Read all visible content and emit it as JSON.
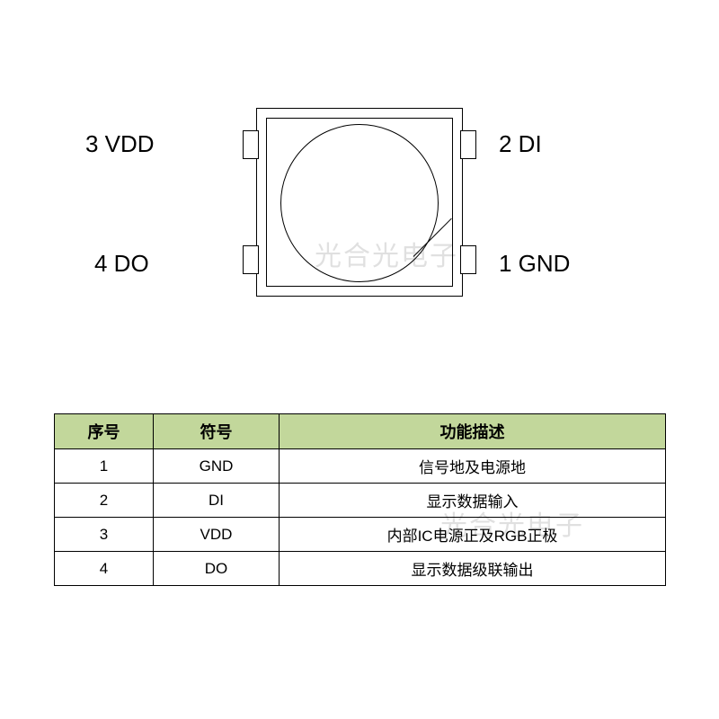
{
  "watermark": "光合光电子",
  "diagram": {
    "pins": {
      "p3": "3 VDD",
      "p2": "2 DI",
      "p4": "4 DO",
      "p1": "1 GND"
    },
    "stroke_color": "#000000",
    "background": "#ffffff"
  },
  "table": {
    "header_bg": "#c2d79b",
    "border_color": "#000000",
    "columns": [
      "序号",
      "符号",
      "功能描述"
    ],
    "rows": [
      [
        "1",
        "GND",
        "信号地及电源地"
      ],
      [
        "2",
        "DI",
        "显示数据输入"
      ],
      [
        "3",
        "VDD",
        "内部IC电源正及RGB正极"
      ],
      [
        "4",
        "DO",
        "显示数据级联输出"
      ]
    ]
  }
}
